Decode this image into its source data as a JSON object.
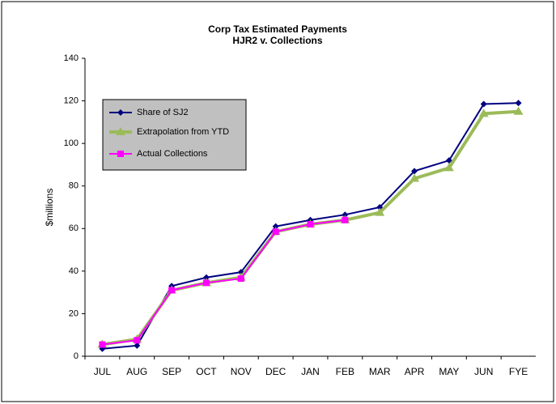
{
  "chart_data": {
    "type": "line",
    "title": "Corp Tax Estimated Payments",
    "subtitle": "HJR2 v. Collections",
    "y_label": "$millions",
    "categories": [
      "JUL",
      "AUG",
      "SEP",
      "OCT",
      "NOV",
      "DEC",
      "JAN",
      "FEB",
      "MAR",
      "APR",
      "MAY",
      "JUN",
      "FYE"
    ],
    "series": [
      {
        "name": "Share of SJ2",
        "color": "#000080",
        "marker": "diamond",
        "values": [
          3.5,
          5,
          33,
          37,
          39.5,
          61,
          64,
          66.5,
          70,
          87,
          92,
          118.5,
          119
        ]
      },
      {
        "name": "Extrapolation from YTD",
        "color": "#9bbb59",
        "marker": "triangle",
        "values": [
          5.5,
          8,
          31,
          34.5,
          37,
          58.5,
          62,
          64,
          67.5,
          83.5,
          88.5,
          114,
          115
        ]
      },
      {
        "name": "Actual Collections",
        "color": "#ff00ff",
        "marker": "square",
        "values": [
          5.5,
          7.5,
          31,
          34.5,
          36.5,
          58.5,
          62,
          64,
          null,
          null,
          null,
          null,
          null
        ]
      }
    ],
    "ylim": [
      0,
      140
    ],
    "yticks": [
      0,
      20,
      40,
      60,
      80,
      100,
      120,
      140
    ],
    "grid": false,
    "legend": "upper left"
  }
}
